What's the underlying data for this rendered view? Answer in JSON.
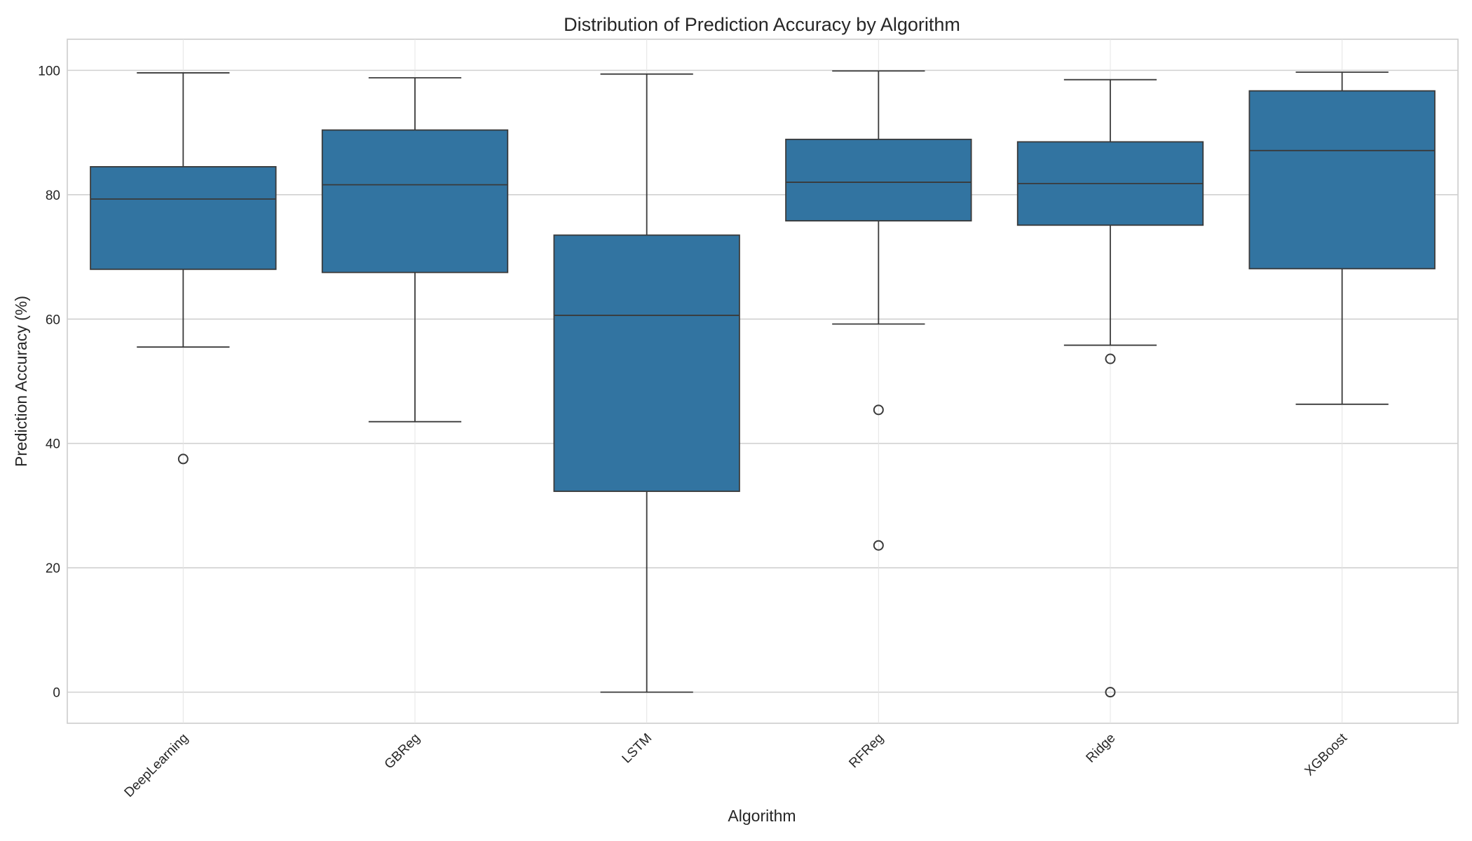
{
  "chart_data": {
    "type": "box",
    "title": "Distribution of Prediction Accuracy by Algorithm",
    "xlabel": "Algorithm",
    "ylabel": "Prediction Accuracy (%)",
    "ylim": [
      -5,
      105
    ],
    "yticks": [
      0,
      20,
      40,
      60,
      80,
      100
    ],
    "grid": true,
    "box_color": "#3274a1",
    "edge_color": "#3a3a3a",
    "categories": [
      "DeepLearning",
      "GBReg",
      "LSTM",
      "RFReg",
      "Ridge",
      "XGBoost"
    ],
    "boxes": [
      {
        "category": "DeepLearning",
        "whisker_low": 55.5,
        "q1": 68.0,
        "median": 79.3,
        "q3": 84.5,
        "whisker_high": 99.6,
        "outliers": [
          37.5
        ]
      },
      {
        "category": "GBReg",
        "whisker_low": 43.5,
        "q1": 67.5,
        "median": 81.6,
        "q3": 90.4,
        "whisker_high": 98.8,
        "outliers": []
      },
      {
        "category": "LSTM",
        "whisker_low": 0.0,
        "q1": 32.3,
        "median": 60.6,
        "q3": 73.5,
        "whisker_high": 99.4,
        "outliers": []
      },
      {
        "category": "RFReg",
        "whisker_low": 59.2,
        "q1": 75.8,
        "median": 82.0,
        "q3": 88.9,
        "whisker_high": 99.9,
        "outliers": [
          45.4,
          23.6
        ]
      },
      {
        "category": "Ridge",
        "whisker_low": 55.8,
        "q1": 75.1,
        "median": 81.8,
        "q3": 88.5,
        "whisker_high": 98.5,
        "outliers": [
          53.6,
          0.0
        ]
      },
      {
        "category": "XGBoost",
        "whisker_low": 46.3,
        "q1": 68.1,
        "median": 87.1,
        "q3": 96.7,
        "whisker_high": 99.7,
        "outliers": []
      }
    ]
  }
}
